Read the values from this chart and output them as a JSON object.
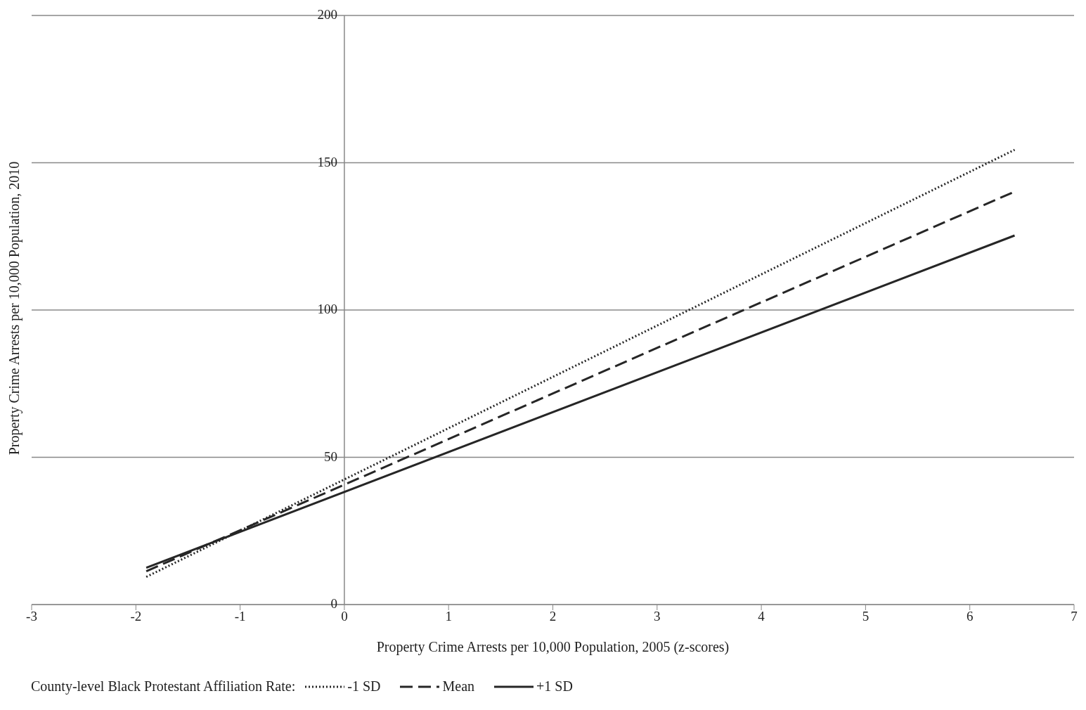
{
  "chart_data": {
    "type": "line",
    "xlabel": "Property Crime Arrests per 10,000 Population, 2005 (z-scores)",
    "ylabel": "Property Crime Arrests per 10,000 Population, 2010",
    "legend_title": "County-level Black Protestant Affiliation Rate:",
    "legend": "bottom",
    "grid": "y",
    "marker": "none",
    "xlim": [
      -3,
      7
    ],
    "xticks": [
      -3,
      -2,
      -1,
      0,
      1,
      2,
      3,
      4,
      5,
      6,
      7
    ],
    "ylim": [
      0,
      200
    ],
    "yticks": [
      0,
      50,
      100,
      150,
      200
    ],
    "x": [
      -1.9,
      6.43
    ],
    "series": [
      {
        "name": "-1 SD",
        "color": "#262626",
        "line_style": "dotted",
        "values": [
          9.4,
          154.4
        ]
      },
      {
        "name": "Mean",
        "color": "#262626",
        "line_style": "dashed",
        "values": [
          11.3,
          140.2
        ]
      },
      {
        "name": "+1 SD",
        "color": "#262626",
        "line_style": "solid",
        "values": [
          12.5,
          125.3
        ]
      }
    ]
  }
}
